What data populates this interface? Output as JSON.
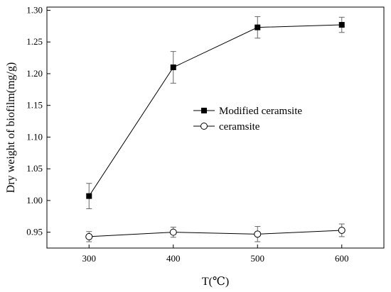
{
  "chart_data": {
    "type": "line",
    "title": "",
    "xlabel": "T(℃)",
    "ylabel": "Dry weight of biofilm(mg/g)",
    "x": [
      300,
      400,
      500,
      600
    ],
    "xticks": [
      "300",
      "400",
      "500",
      "600"
    ],
    "yticks": [
      "0.95",
      "1.00",
      "1.05",
      "1.10",
      "1.15",
      "1.20",
      "1.25",
      "1.30"
    ],
    "xlim": [
      250,
      650
    ],
    "ylim": [
      0.925,
      1.305
    ],
    "grid": false,
    "legend_position": "center-right",
    "series": [
      {
        "name": "Modified ceramsite",
        "marker": "filled-square",
        "color": "#000000",
        "values": [
          1.007,
          1.21,
          1.273,
          1.277
        ],
        "errors": [
          0.02,
          0.025,
          0.017,
          0.012
        ]
      },
      {
        "name": "ceramsite",
        "marker": "open-circle",
        "color": "#000000",
        "values": [
          0.943,
          0.95,
          0.947,
          0.953
        ],
        "errors": [
          0.008,
          0.008,
          0.012,
          0.01
        ]
      }
    ]
  }
}
